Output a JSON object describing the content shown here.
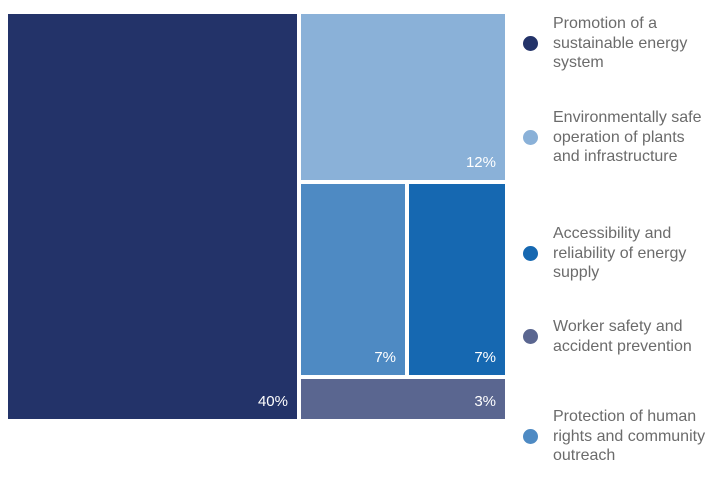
{
  "chart_data": {
    "type": "treemap",
    "items": [
      {
        "name": "Promotion of a sustainable energy system",
        "label": "40%",
        "value": 40,
        "color": "#233369"
      },
      {
        "name": "Environmentally safe operation of plants and infrastructure",
        "label": "12%",
        "value": 12,
        "color": "#8ab1d8"
      },
      {
        "name": "Accessibility and reliability of energy supply",
        "label": "7%",
        "value": 7,
        "color": "#1668b1"
      },
      {
        "name": "Worker safety and accident prevention",
        "label": "3%",
        "value": 3,
        "color": "#5a6690"
      },
      {
        "name": "Protection of human rights and community outreach",
        "label": "7%",
        "value": 7,
        "color": "#4e8ac3"
      }
    ],
    "legend_position": "right"
  }
}
